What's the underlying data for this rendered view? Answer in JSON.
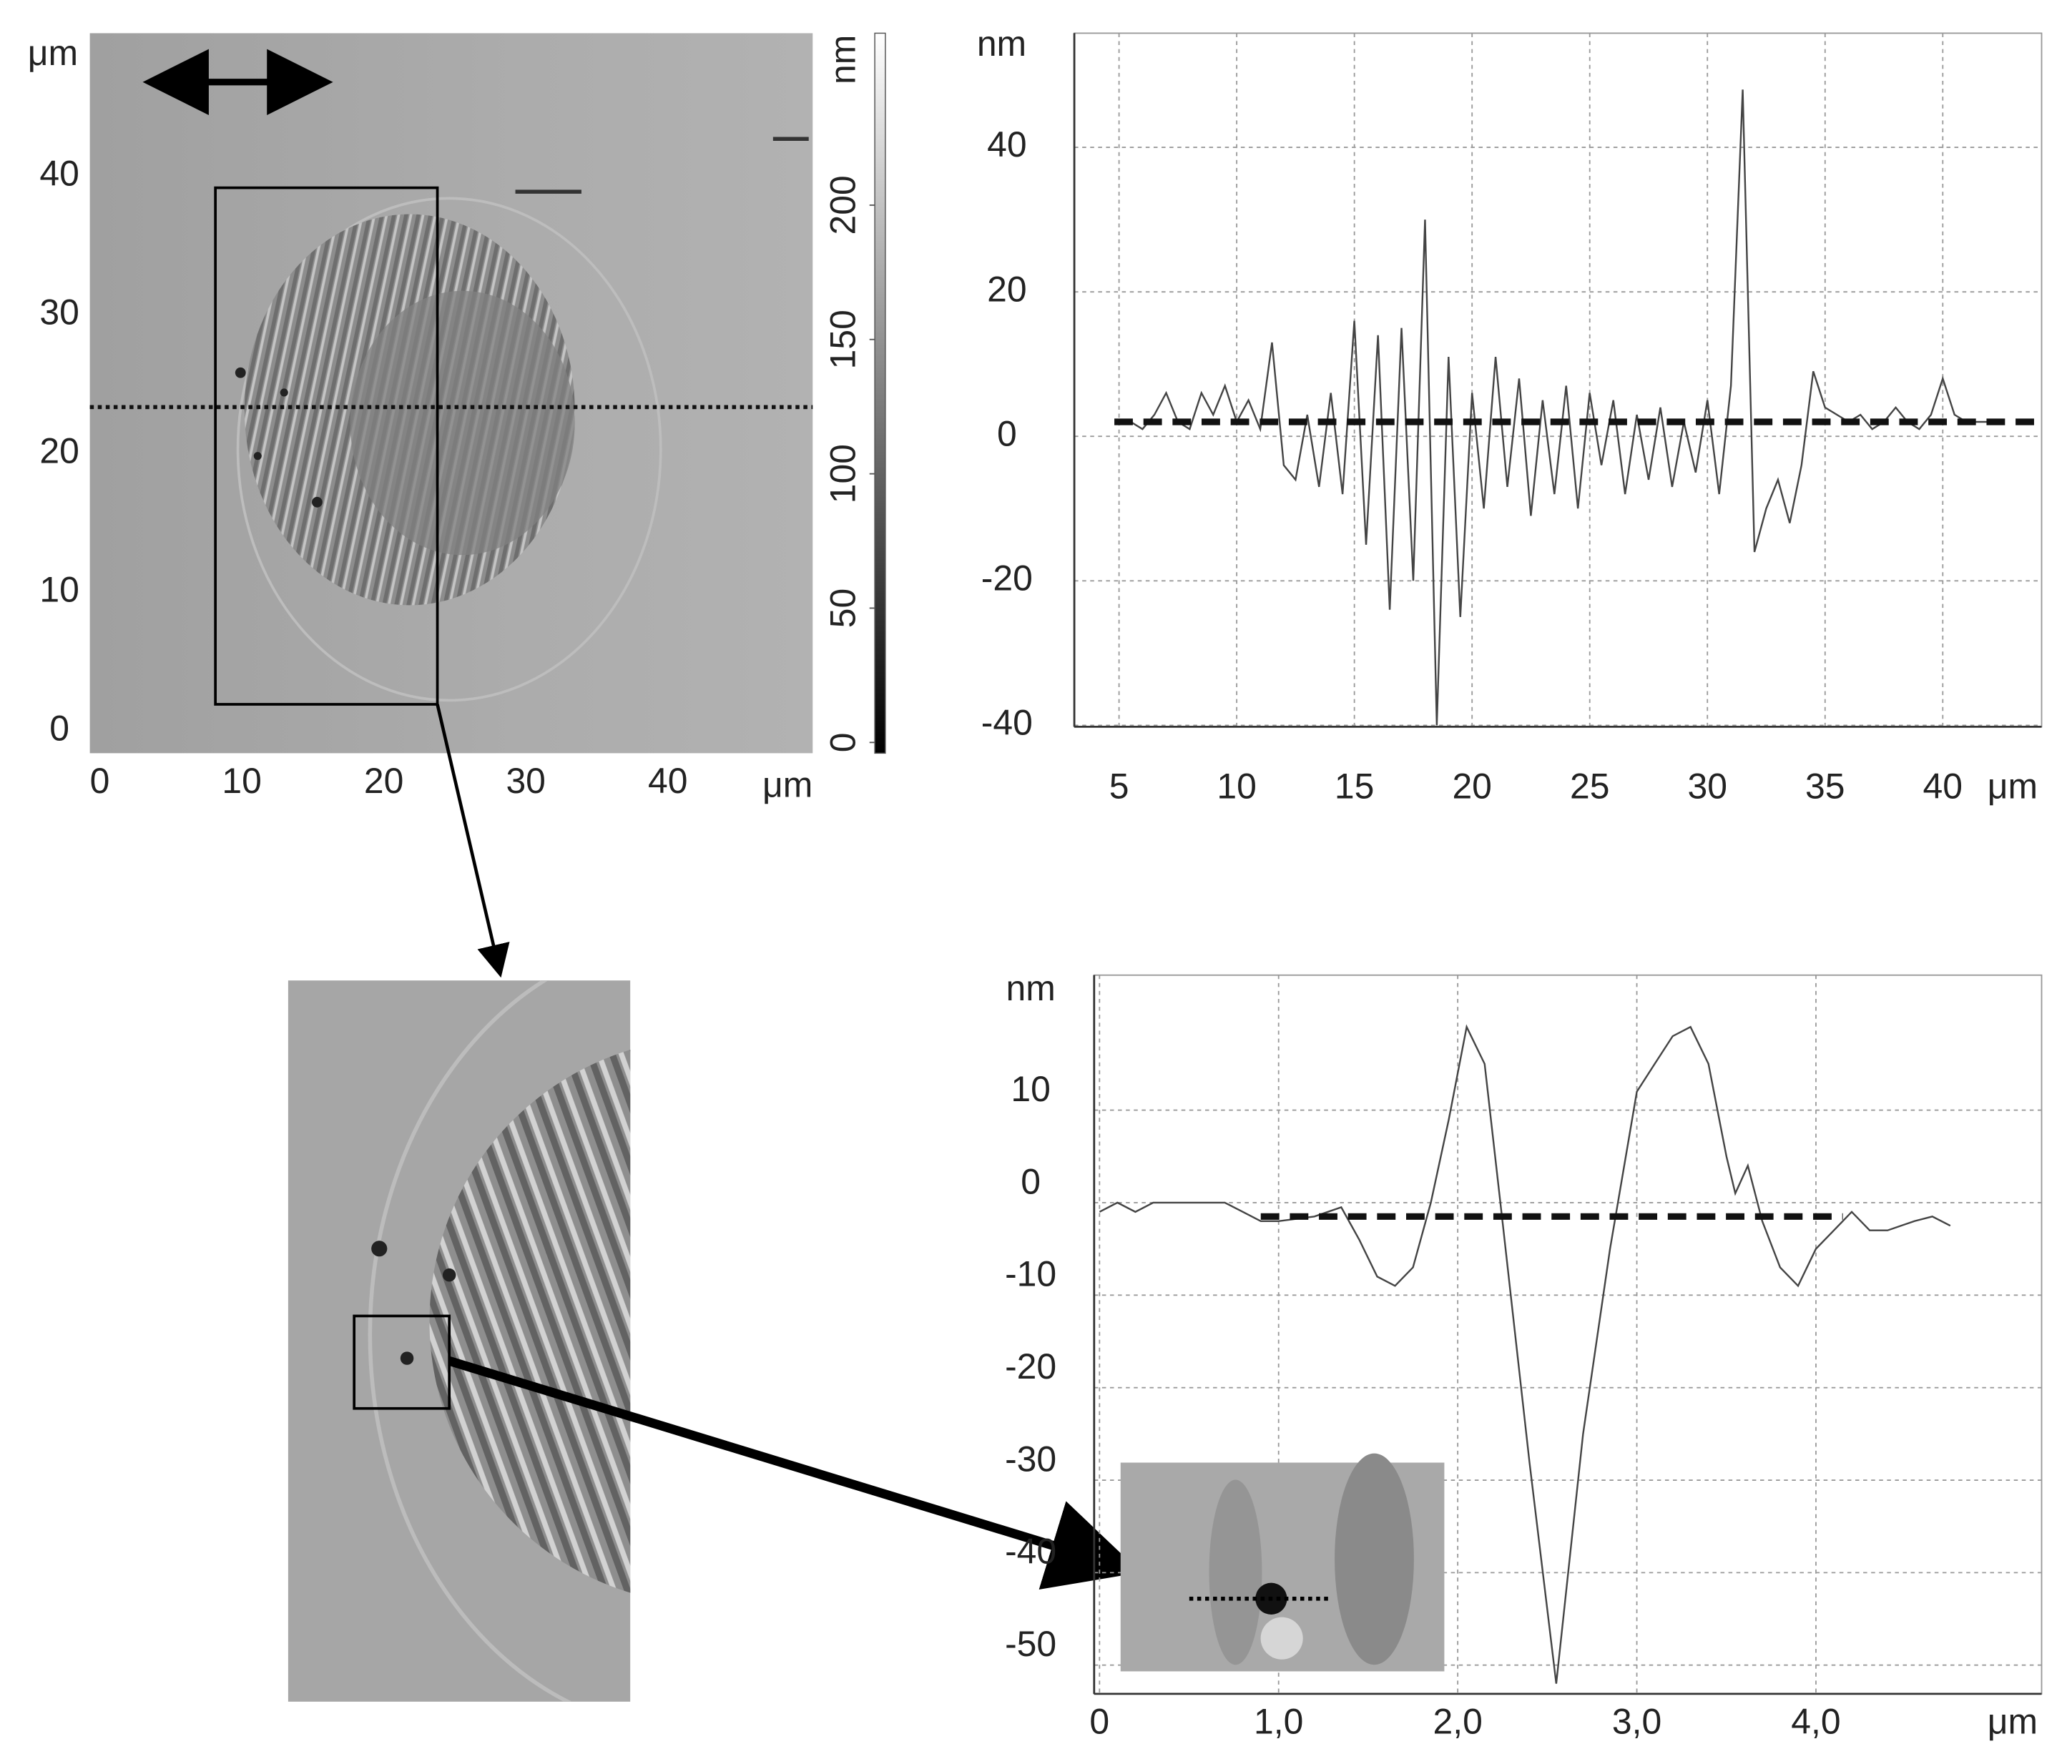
{
  "chart_data": [
    {
      "type": "image",
      "x_label": "μm",
      "y_label": "μm",
      "colorbar_label": "nm",
      "xlim": [
        -0.7,
        50.2
      ],
      "ylim": [
        -1.6,
        50.3
      ],
      "xticks": [
        0,
        10,
        20,
        30,
        40
      ],
      "yticks": [
        0,
        10,
        20,
        30,
        40
      ],
      "clim": [
        -4,
        264
      ],
      "cticks": [
        0,
        50,
        100,
        150,
        200
      ],
      "colormap": [
        "#000000",
        "#ffffff"
      ]
    },
    {
      "type": "line",
      "x_label": "μm",
      "y_label": "nm",
      "grid": true,
      "xlim": [
        3.1,
        44.2
      ],
      "ylim": [
        -40.2,
        55.8
      ],
      "xticks": [
        5,
        10,
        15,
        20,
        25,
        30,
        35,
        40
      ],
      "yticks": [
        -40,
        -20,
        0,
        20,
        40
      ],
      "series": [
        {
          "color": "#444444",
          "style": "solid",
          "x": [
            5,
            5.5,
            6,
            6.5,
            7,
            7.5,
            8,
            8.5,
            9,
            9.5,
            10,
            10.5,
            11,
            11.5,
            12,
            12.5,
            13,
            13.5,
            14,
            14.5,
            15,
            15.5,
            16,
            16.5,
            17,
            17.5,
            18,
            18.5,
            19,
            19.5,
            20,
            20.5,
            21,
            21.5,
            22,
            22.5,
            23,
            23.5,
            24,
            24.5,
            25,
            25.5,
            26,
            26.5,
            27,
            27.5,
            28,
            28.5,
            29,
            29.5,
            30,
            30.5,
            31,
            31.5,
            32,
            32.5,
            33,
            33.5,
            34,
            34.5,
            35,
            35.5,
            36,
            36.5,
            37,
            37.5,
            38,
            38.5,
            39,
            39.5,
            40,
            40.5,
            41,
            41.5,
            42,
            42.5
          ],
          "values": [
            2,
            2,
            1,
            3,
            6,
            2,
            1,
            6,
            3,
            7,
            2,
            5,
            1,
            13,
            -4,
            -6,
            3,
            -7,
            6,
            -8,
            16,
            -15,
            14,
            -24,
            15,
            -20,
            30,
            -40,
            11,
            -25,
            6,
            -10,
            11,
            -7,
            8,
            -11,
            5,
            -8,
            7,
            -10,
            6,
            -4,
            5,
            -8,
            3,
            -6,
            4,
            -7,
            2,
            -5,
            5,
            -8,
            7,
            48,
            -16,
            -10,
            -6,
            -12,
            -4,
            9,
            4,
            3,
            2,
            3,
            1,
            2,
            4,
            2,
            1,
            3,
            8,
            3,
            2,
            2,
            2,
            2
          ]
        },
        {
          "color": "#111111",
          "style": "dashed",
          "x": [
            4.8,
            44.3
          ],
          "values": [
            2,
            2
          ]
        }
      ]
    },
    {
      "type": "line",
      "x_label": "μm",
      "y_label": "nm",
      "grid": true,
      "xlim": [
        -0.03,
        5.26
      ],
      "ylim": [
        -53.1,
        24.6
      ],
      "xticks": [
        0,
        {
          "value": 1,
          "label": "1,0"
        },
        {
          "value": 2,
          "label": "2,0"
        },
        {
          "value": 3,
          "label": "3,0"
        },
        {
          "value": 4,
          "label": "4,0"
        }
      ],
      "yticks": [
        -50,
        -40,
        -30,
        -20,
        -10,
        0,
        10
      ],
      "series": [
        {
          "color": "#444444",
          "style": "solid",
          "x": [
            0,
            0.1,
            0.2,
            0.3,
            0.5,
            0.7,
            0.8,
            0.9,
            1.0,
            1.2,
            1.35,
            1.45,
            1.55,
            1.65,
            1.75,
            1.85,
            1.95,
            2.05,
            2.15,
            2.25,
            2.4,
            2.55,
            2.7,
            2.85,
            3.0,
            3.1,
            3.2,
            3.3,
            3.4,
            3.5,
            3.55,
            3.62,
            3.7,
            3.8,
            3.9,
            4.0,
            4.1,
            4.2,
            4.3,
            4.4,
            4.55,
            4.65,
            4.75
          ],
          "values": [
            -1,
            0,
            -1,
            0,
            0,
            0,
            -1,
            -2,
            -2,
            -1.5,
            -0.5,
            -4,
            -8,
            -9,
            -7,
            0,
            9,
            19,
            15,
            -2,
            -28,
            -52,
            -25,
            -5,
            12,
            15,
            18,
            19,
            15,
            5,
            1,
            4,
            -2,
            -7,
            -9,
            -5,
            -3,
            -1,
            -3,
            -3,
            -2,
            -1.5,
            -2.5
          ]
        },
        {
          "color": "#111111",
          "style": "dashed",
          "x": [
            0.9,
            4.15
          ],
          "values": [
            -1.5,
            -1.5
          ]
        }
      ]
    }
  ]
}
